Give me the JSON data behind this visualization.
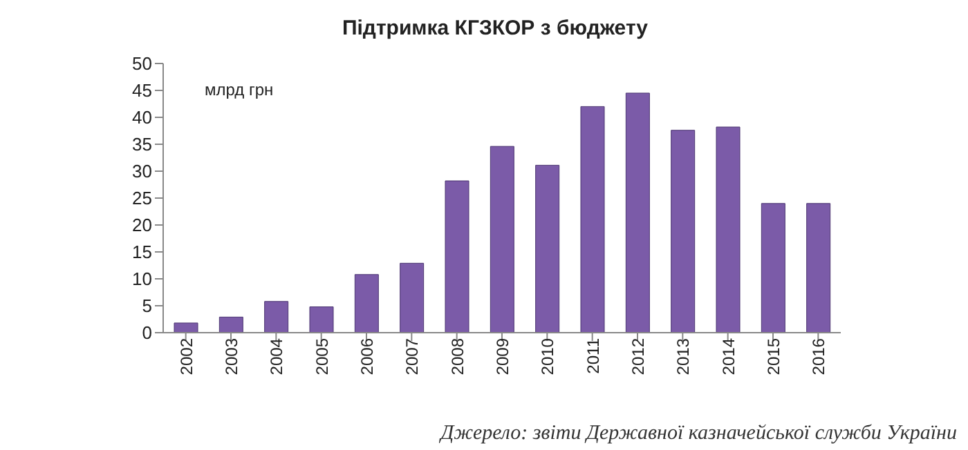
{
  "chart_data": {
    "type": "bar",
    "title": "Підтримка КГЗКОР з бюджету",
    "ylabel": "млрд грн",
    "categories": [
      "2002",
      "2003",
      "2004",
      "2005",
      "2006",
      "2007",
      "2008",
      "2009",
      "2010",
      "2011",
      "2012",
      "2013",
      "2014",
      "2015",
      "2016"
    ],
    "values": [
      1.8,
      2.9,
      5.8,
      4.8,
      10.8,
      12.9,
      28.2,
      34.6,
      31.1,
      42,
      44.5,
      37.6,
      38.2,
      24,
      24
    ],
    "color": "#7b5ba8",
    "ylim": [
      0,
      50
    ],
    "yticks": [
      0,
      5,
      10,
      15,
      20,
      25,
      30,
      35,
      40,
      45,
      50
    ],
    "grid": false,
    "annotations": [
      "Джерело: звіти Державної казначейської служби України"
    ]
  }
}
